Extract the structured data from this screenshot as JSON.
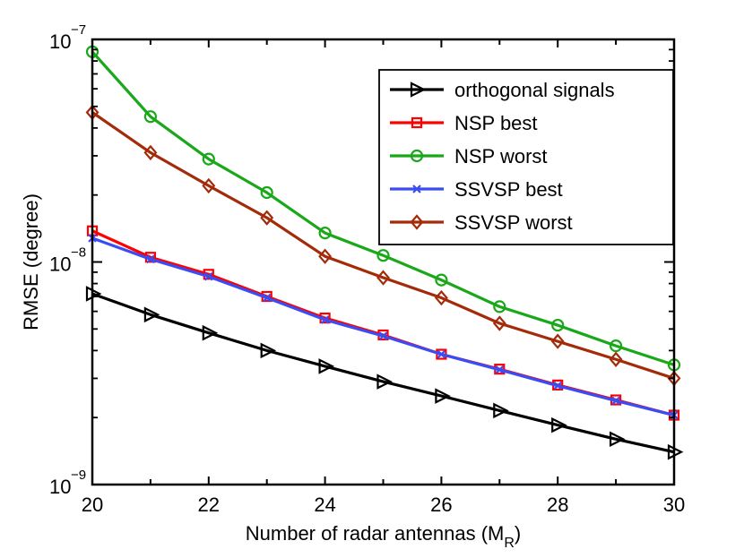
{
  "chart_data": {
    "type": "line",
    "title": "",
    "xlabel": "Number of radar antennas (M",
    "xlabel_sub": "R",
    "xlabel_close": ")",
    "ylabel": "RMSE (degree)",
    "x": [
      20,
      21,
      22,
      23,
      24,
      25,
      26,
      27,
      28,
      29,
      30
    ],
    "xlim": [
      20,
      30
    ],
    "ylim": [
      1e-09,
      1e-07
    ],
    "yscale": "log",
    "xticks": [
      20,
      22,
      24,
      26,
      28,
      30
    ],
    "xtick_labels": [
      "20",
      "22",
      "24",
      "26",
      "28",
      "30"
    ],
    "yticks": [
      {
        "value": 1e-09,
        "base": "10",
        "exp": "−9"
      },
      {
        "value": 1e-08,
        "base": "10",
        "exp": "−8"
      },
      {
        "value": 1e-07,
        "base": "10",
        "exp": "−7"
      }
    ],
    "grid": false,
    "legend_position": "top-right",
    "series": [
      {
        "name": "orthogonal signals",
        "color": "#000000",
        "marker": "triangle-right",
        "values": [
          7.2e-09,
          5.8e-09,
          4.8e-09,
          4e-09,
          3.4e-09,
          2.9e-09,
          2.5e-09,
          2.15e-09,
          1.85e-09,
          1.6e-09,
          1.4e-09
        ]
      },
      {
        "name": "NSP best",
        "color": "#ff0000",
        "marker": "square",
        "values": [
          1.38e-08,
          1.05e-08,
          8.8e-09,
          7e-09,
          5.6e-09,
          4.7e-09,
          3.85e-09,
          3.3e-09,
          2.8e-09,
          2.4e-09,
          2.05e-09
        ]
      },
      {
        "name": "NSP worst",
        "color": "#1aa81a",
        "marker": "circle",
        "values": [
          8.8e-08,
          4.5e-08,
          2.9e-08,
          2.05e-08,
          1.35e-08,
          1.07e-08,
          8.3e-09,
          6.3e-09,
          5.2e-09,
          4.2e-09,
          3.45e-09
        ]
      },
      {
        "name": "SSVSP best",
        "color": "#3a4df5",
        "marker": "x",
        "values": [
          1.28e-08,
          1.03e-08,
          8.6e-09,
          6.9e-09,
          5.5e-09,
          4.65e-09,
          3.85e-09,
          3.28e-09,
          2.78e-09,
          2.38e-09,
          2.05e-09
        ]
      },
      {
        "name": "SSVSP worst",
        "color": "#a32b0a",
        "marker": "diamond",
        "values": [
          4.7e-08,
          3.1e-08,
          2.2e-08,
          1.58e-08,
          1.06e-08,
          8.5e-09,
          6.9e-09,
          5.3e-09,
          4.4e-09,
          3.65e-09,
          3e-09
        ]
      }
    ]
  }
}
